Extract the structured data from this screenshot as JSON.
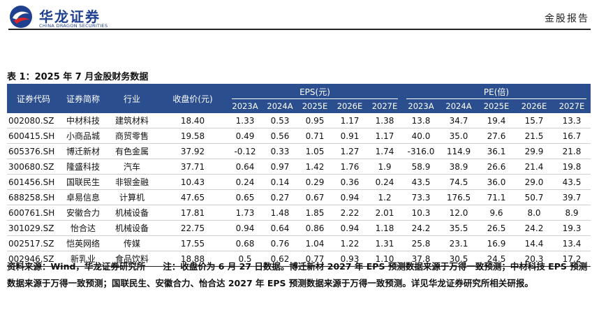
{
  "header": {
    "logo_cn": "华龙证券",
    "logo_en": "CHINA DRAGON SECURITIES",
    "report_type": "金股报告"
  },
  "table_title": "表 1：2025 年 7 月金股财务数据",
  "columns": {
    "code": "证券代码",
    "name": "证券简称",
    "industry": "行业",
    "price": "收盘价(元)",
    "eps_group": "EPS(元)",
    "pe_group": "PE(倍)",
    "years": [
      "2023A",
      "2024A",
      "2025E",
      "2026E",
      "2027E"
    ]
  },
  "rows": [
    {
      "code": "002080.SZ",
      "name": "中材科技",
      "industry": "建筑材料",
      "price": "18.40",
      "eps": [
        "1.33",
        "0.53",
        "0.95",
        "1.17",
        "1.38"
      ],
      "pe": [
        "13.8",
        "34.7",
        "19.4",
        "15.7",
        "13.3"
      ]
    },
    {
      "code": "600415.SH",
      "name": "小商品城",
      "industry": "商贸零售",
      "price": "19.58",
      "eps": [
        "0.49",
        "0.56",
        "0.71",
        "0.91",
        "1.17"
      ],
      "pe": [
        "40.0",
        "35.0",
        "27.6",
        "21.5",
        "16.7"
      ]
    },
    {
      "code": "605376.SH",
      "name": "博迁新材",
      "industry": "有色金属",
      "price": "37.92",
      "eps": [
        "-0.12",
        "0.33",
        "1.05",
        "1.27",
        "1.74"
      ],
      "pe": [
        "-316.0",
        "114.9",
        "36.1",
        "29.9",
        "21.8"
      ]
    },
    {
      "code": "300680.SZ",
      "name": "隆盛科技",
      "industry": "汽车",
      "price": "37.71",
      "eps": [
        "0.64",
        "0.97",
        "1.42",
        "1.76",
        "1.9"
      ],
      "pe": [
        "58.9",
        "38.9",
        "26.6",
        "21.4",
        "19.8"
      ]
    },
    {
      "code": "601456.SH",
      "name": "国联民生",
      "industry": "非银金融",
      "price": "10.43",
      "eps": [
        "0.24",
        "0.14",
        "0.29",
        "0.36",
        "0.24"
      ],
      "pe": [
        "43.5",
        "74.5",
        "36.0",
        "29.0",
        "43.5"
      ]
    },
    {
      "code": "688258.SH",
      "name": "卓易信息",
      "industry": "计算机",
      "price": "47.65",
      "eps": [
        "0.65",
        "0.27",
        "0.67",
        "0.94",
        "1.2"
      ],
      "pe": [
        "73.3",
        "176.5",
        "71.1",
        "50.7",
        "39.7"
      ]
    },
    {
      "code": "600761.SH",
      "name": "安徽合力",
      "industry": "机械设备",
      "price": "17.81",
      "eps": [
        "1.73",
        "1.48",
        "1.85",
        "2.22",
        "2.01"
      ],
      "pe": [
        "10.3",
        "12.0",
        "9.6",
        "8.0",
        "8.9"
      ]
    },
    {
      "code": "301029.SZ",
      "name": "怡合达",
      "industry": "机械设备",
      "price": "22.75",
      "eps": [
        "0.94",
        "0.64",
        "0.86",
        "0.94",
        "1.18"
      ],
      "pe": [
        "24.2",
        "35.5",
        "26.5",
        "24.2",
        "19.3"
      ]
    },
    {
      "code": "002517.SZ",
      "name": "恺英网络",
      "industry": "传媒",
      "price": "17.55",
      "eps": [
        "0.68",
        "0.76",
        "1.04",
        "1.22",
        "1.31"
      ],
      "pe": [
        "25.8",
        "23.1",
        "16.9",
        "14.4",
        "13.4"
      ]
    },
    {
      "code": "002946.SZ",
      "name": "新乳业",
      "industry": "食品饮料",
      "price": "18.88",
      "eps": [
        "0.5",
        "0.62",
        "0.77",
        "0.93",
        "1.10"
      ],
      "pe": [
        "37.8",
        "30.5",
        "24.5",
        "20.3",
        "17.2"
      ]
    }
  ],
  "footnote": "资料来源：Wind，华龙证券研究所　　注：收盘价为 6 月 27 日数据。博迁新材 2027 年 EPS 预测数据来源于万得一致预测；中材科技 EPS 预测数据来源于万得一致预测；国联民生、安徽合力、怡合达 2027 年 EPS 预测数据来源于万得一致预测。详见华龙证券研究所相关研报。",
  "colors": {
    "header_bg": "#2b4e8f",
    "brand": "#1f3f8f",
    "logo_red": "#d9262c"
  }
}
